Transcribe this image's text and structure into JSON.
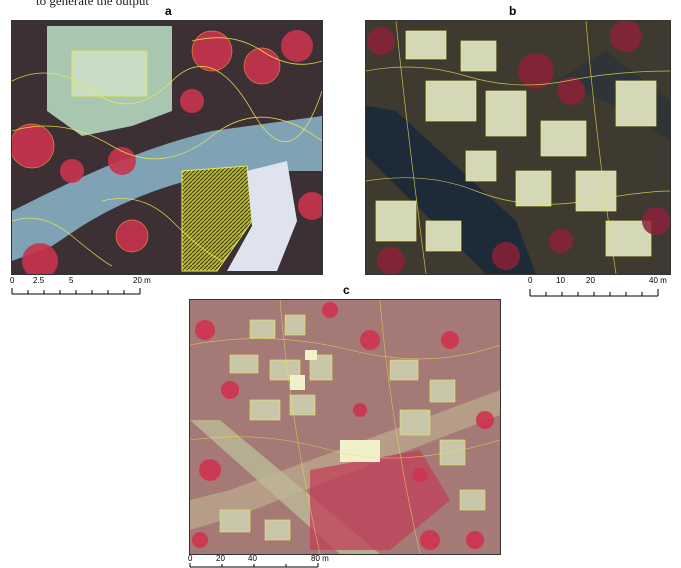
{
  "caption_fragment": "to generate the output",
  "panels": {
    "a": {
      "label": "a"
    },
    "b": {
      "label": "b"
    },
    "c": {
      "label": "c"
    }
  },
  "scalebars": {
    "a": {
      "ticks": [
        "0",
        "2.5",
        "5",
        "20 m"
      ]
    },
    "b": {
      "ticks": [
        "0",
        "10",
        "20",
        "40 m"
      ]
    },
    "c": {
      "ticks": [
        "0",
        "20",
        "40",
        "80 m"
      ]
    }
  }
}
